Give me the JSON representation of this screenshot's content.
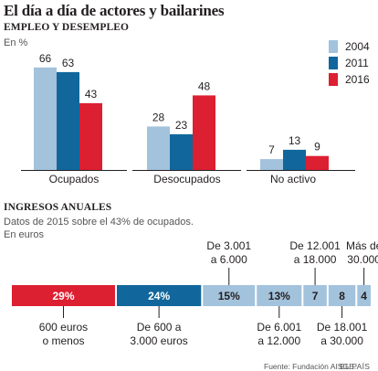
{
  "title": "El día a día de actores y bailarines",
  "colors": {
    "2004": "#a3c2dc",
    "2011": "#11679c",
    "2016": "#dc1f31",
    "axis": "#231f20",
    "text": "#231f20",
    "muted": "#555555"
  },
  "chart_data": [
    {
      "type": "bar",
      "title": "EMPLEO Y DESEMPLEO",
      "subtitle": "En %",
      "categories": [
        "Ocupados",
        "Desocupados",
        "No activo"
      ],
      "series": [
        {
          "name": "2004",
          "values": [
            66,
            28,
            7
          ]
        },
        {
          "name": "2011",
          "values": [
            63,
            23,
            13
          ]
        },
        {
          "name": "2016",
          "values": [
            43,
            48,
            9
          ]
        }
      ],
      "legend_position": "top-right",
      "grid": false
    },
    {
      "type": "bar",
      "orientation": "horizontal-stacked",
      "title": "INGRESOS ANUALES",
      "subtitle": "Datos de 2015 sobre el 43% de ocupados.",
      "unit": "En euros",
      "segments": [
        {
          "label": "600 euros o menos",
          "value": 29,
          "value_label": "29%",
          "label_lines": [
            "600 euros",
            "o menos"
          ],
          "label_side": "below",
          "color": "#dc1f31"
        },
        {
          "label": "De 600 a 3.000 euros",
          "value": 24,
          "value_label": "24%",
          "label_lines": [
            "De 600 a",
            "3.000 euros"
          ],
          "label_side": "below",
          "color": "#11679c"
        },
        {
          "label": "De 3.001 a 6.000",
          "value": 15,
          "value_label": "15%",
          "label_lines": [
            "De 3.001",
            "a 6.000"
          ],
          "label_side": "above",
          "color": "#a3c2dc"
        },
        {
          "label": "De 6.001 a 12.000",
          "value": 13,
          "value_label": "13%",
          "label_lines": [
            "De 6.001",
            "a 12.000"
          ],
          "label_side": "below",
          "color": "#a3c2dc"
        },
        {
          "label": "De 12.001 a 18.000",
          "value": 7,
          "value_label": "7",
          "label_lines": [
            "De 12.001",
            "a 18.000"
          ],
          "label_side": "above",
          "color": "#a3c2dc"
        },
        {
          "label": "De 18.001 a 30.000",
          "value": 8,
          "value_label": "8",
          "label_lines": [
            "De 18.001",
            "a 30.000"
          ],
          "label_side": "below",
          "color": "#a3c2dc"
        },
        {
          "label": "Más de 30.000",
          "value": 4,
          "value_label": "4",
          "label_lines": [
            "Más de",
            "30.000"
          ],
          "label_side": "above",
          "color": "#a3c2dc"
        }
      ]
    }
  ],
  "source": "Fuente: Fundación AISGE.",
  "brand": "EL PAÍS"
}
